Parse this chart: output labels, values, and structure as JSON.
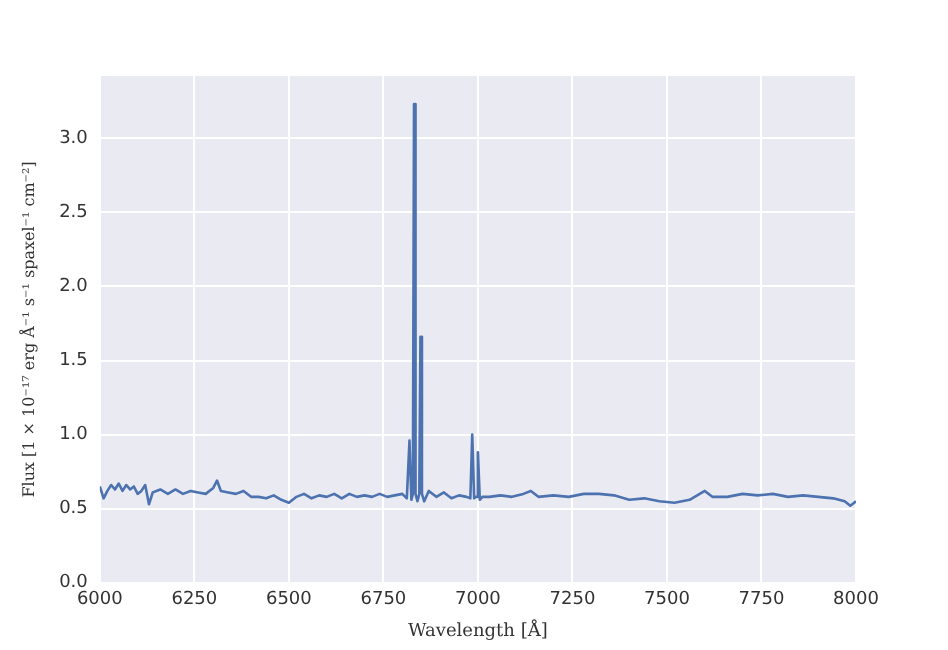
{
  "chart_data": {
    "type": "line",
    "xlabel": "Wavelength [Å]",
    "ylabel": "Flux [1 × 10⁻¹⁷ erg Å⁻¹ s⁻¹ spaxel⁻¹ cm⁻²]",
    "xlim": [
      6000,
      8000
    ],
    "xticks": [
      6000,
      6250,
      6500,
      6750,
      7000,
      7250,
      7500,
      7750,
      8000
    ],
    "ylim": [
      0,
      3.42
    ],
    "yticks": [
      {
        "value": 0,
        "label": "0.0"
      },
      {
        "value": 0.5,
        "label": "0.5"
      },
      {
        "value": 1,
        "label": "1.0"
      },
      {
        "value": 1.5,
        "label": "1.5"
      },
      {
        "value": 2,
        "label": "2.0"
      },
      {
        "value": 2.5,
        "label": "2.5"
      },
      {
        "value": 3,
        "label": "3.0"
      }
    ],
    "grid": true,
    "legend": false,
    "marker": "none",
    "line_style": "solid",
    "series": [
      {
        "color": "#4c72b0",
        "x": [
          6000,
          6010,
          6020,
          6030,
          6040,
          6050,
          6060,
          6070,
          6080,
          6090,
          6100,
          6110,
          6120,
          6130,
          6140,
          6160,
          6180,
          6200,
          6220,
          6240,
          6260,
          6280,
          6300,
          6310,
          6320,
          6340,
          6360,
          6380,
          6400,
          6420,
          6440,
          6460,
          6480,
          6500,
          6520,
          6540,
          6560,
          6580,
          6600,
          6620,
          6640,
          6660,
          6680,
          6700,
          6720,
          6740,
          6760,
          6780,
          6800,
          6812,
          6819,
          6824,
          6828,
          6831,
          6835,
          6840,
          6845,
          6848,
          6852,
          6858,
          6870,
          6890,
          6910,
          6930,
          6950,
          6970,
          6980,
          6985,
          6990,
          6995,
          7000,
          7005,
          7012,
          7030,
          7060,
          7090,
          7120,
          7140,
          7160,
          7200,
          7240,
          7280,
          7320,
          7360,
          7400,
          7440,
          7480,
          7520,
          7560,
          7600,
          7620,
          7660,
          7700,
          7740,
          7780,
          7820,
          7860,
          7900,
          7940,
          7970,
          7985,
          8000
        ],
        "values": [
          0.65,
          0.57,
          0.62,
          0.66,
          0.63,
          0.67,
          0.62,
          0.66,
          0.63,
          0.65,
          0.6,
          0.62,
          0.66,
          0.53,
          0.61,
          0.63,
          0.6,
          0.63,
          0.6,
          0.62,
          0.61,
          0.6,
          0.64,
          0.69,
          0.62,
          0.61,
          0.6,
          0.62,
          0.58,
          0.58,
          0.57,
          0.59,
          0.56,
          0.54,
          0.58,
          0.6,
          0.57,
          0.59,
          0.58,
          0.6,
          0.57,
          0.6,
          0.58,
          0.59,
          0.58,
          0.6,
          0.58,
          0.59,
          0.6,
          0.57,
          0.96,
          0.56,
          0.6,
          3.23,
          0.6,
          0.55,
          0.6,
          1.66,
          0.6,
          0.55,
          0.62,
          0.58,
          0.61,
          0.57,
          0.59,
          0.58,
          0.57,
          1.0,
          0.57,
          0.58,
          0.88,
          0.56,
          0.58,
          0.58,
          0.59,
          0.58,
          0.6,
          0.62,
          0.58,
          0.59,
          0.58,
          0.6,
          0.6,
          0.59,
          0.56,
          0.57,
          0.55,
          0.54,
          0.56,
          0.62,
          0.58,
          0.58,
          0.6,
          0.59,
          0.6,
          0.58,
          0.59,
          0.58,
          0.57,
          0.55,
          0.52,
          0.55
        ]
      }
    ]
  }
}
